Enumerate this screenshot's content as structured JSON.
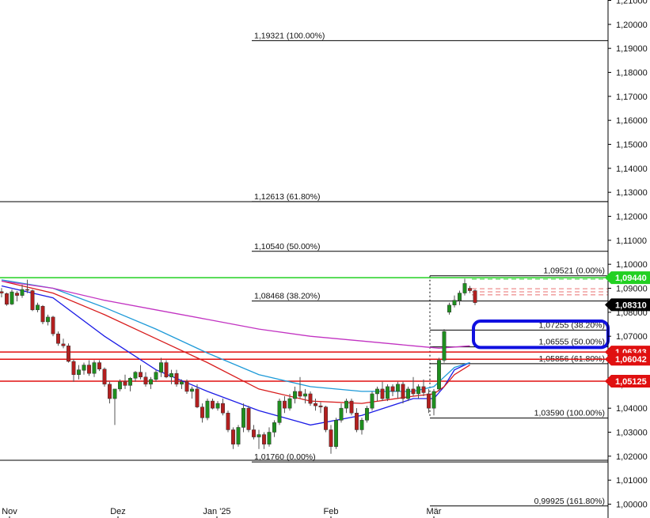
{
  "chart_data": {
    "type": "candlestick",
    "instrument": "EUR/USD",
    "y_axis": {
      "range": [
        1.0,
        1.21
      ],
      "ticks": [
        "1,00000",
        "1,01000",
        "1,02000",
        "1,03000",
        "1,04000",
        "1,05000",
        "1,06000",
        "1,07000",
        "1,08000",
        "1,09000",
        "1,10000",
        "1,11000",
        "1,12000",
        "1,13000",
        "1,14000",
        "1,15000",
        "1,16000",
        "1,17000",
        "1,18000",
        "1,19000",
        "1,20000",
        "1,21000"
      ],
      "position": "right"
    },
    "x_axis": {
      "labels": [
        {
          "text": "Nov",
          "date": "2024-11-01"
        },
        {
          "text": "Dez",
          "date": "2024-12-01"
        },
        {
          "text": "Jan '25",
          "date": "2025-01-01"
        },
        {
          "text": "Feb",
          "date": "2025-02-01"
        },
        {
          "text": "Mär",
          "date": "2025-03-01"
        }
      ]
    },
    "candles": [
      {
        "o": 1.0886,
        "h": 1.0901,
        "l": 1.0862,
        "c": 1.088
      },
      {
        "o": 1.0878,
        "h": 1.0882,
        "l": 1.0827,
        "c": 1.0833
      },
      {
        "o": 1.0834,
        "h": 1.0895,
        "l": 1.083,
        "c": 1.0885
      },
      {
        "o": 1.088,
        "h": 1.0888,
        "l": 1.0845,
        "c": 1.087
      },
      {
        "o": 1.087,
        "h": 1.0915,
        "l": 1.086,
        "c": 1.0895
      },
      {
        "o": 1.0895,
        "h": 1.0936,
        "l": 1.088,
        "c": 1.0893
      },
      {
        "o": 1.089,
        "h": 1.0895,
        "l": 1.0805,
        "c": 1.081
      },
      {
        "o": 1.081,
        "h": 1.084,
        "l": 1.08,
        "c": 1.083
      },
      {
        "o": 1.0825,
        "h": 1.083,
        "l": 1.075,
        "c": 1.076
      },
      {
        "o": 1.076,
        "h": 1.079,
        "l": 1.0745,
        "c": 1.078
      },
      {
        "o": 1.078,
        "h": 1.0785,
        "l": 1.07,
        "c": 1.071
      },
      {
        "o": 1.071,
        "h": 1.072,
        "l": 1.066,
        "c": 1.067
      },
      {
        "o": 1.0668,
        "h": 1.069,
        "l": 1.065,
        "c": 1.066
      },
      {
        "o": 1.066,
        "h": 1.067,
        "l": 1.059,
        "c": 1.0595
      },
      {
        "o": 1.0595,
        "h": 1.0605,
        "l": 1.051,
        "c": 1.054
      },
      {
        "o": 1.054,
        "h": 1.058,
        "l": 1.052,
        "c": 1.056
      },
      {
        "o": 1.0558,
        "h": 1.059,
        "l": 1.054,
        "c": 1.058
      },
      {
        "o": 1.058,
        "h": 1.06,
        "l": 1.0535,
        "c": 1.0545
      },
      {
        "o": 1.0545,
        "h": 1.06,
        "l": 1.053,
        "c": 1.059
      },
      {
        "o": 1.059,
        "h": 1.06,
        "l": 1.0555,
        "c": 1.0563
      },
      {
        "o": 1.0563,
        "h": 1.057,
        "l": 1.049,
        "c": 1.05
      },
      {
        "o": 1.05,
        "h": 1.051,
        "l": 1.042,
        "c": 1.044
      },
      {
        "o": 1.044,
        "h": 1.046,
        "l": 1.033,
        "c": 1.048
      },
      {
        "o": 1.048,
        "h": 1.052,
        "l": 1.047,
        "c": 1.051
      },
      {
        "o": 1.051,
        "h": 1.054,
        "l": 1.048,
        "c": 1.0495
      },
      {
        "o": 1.0495,
        "h": 1.053,
        "l": 1.047,
        "c": 1.0525
      },
      {
        "o": 1.0525,
        "h": 1.0555,
        "l": 1.051,
        "c": 1.055
      },
      {
        "o": 1.055,
        "h": 1.058,
        "l": 1.052,
        "c": 1.053
      },
      {
        "o": 1.053,
        "h": 1.055,
        "l": 1.049,
        "c": 1.05
      },
      {
        "o": 1.05,
        "h": 1.053,
        "l": 1.048,
        "c": 1.052
      },
      {
        "o": 1.052,
        "h": 1.056,
        "l": 1.051,
        "c": 1.055
      },
      {
        "o": 1.055,
        "h": 1.061,
        "l": 1.053,
        "c": 1.059
      },
      {
        "o": 1.059,
        "h": 1.06,
        "l": 1.0525,
        "c": 1.053
      },
      {
        "o": 1.053,
        "h": 1.056,
        "l": 1.05,
        "c": 1.0545
      },
      {
        "o": 1.0545,
        "h": 1.056,
        "l": 1.049,
        "c": 1.05
      },
      {
        "o": 1.05,
        "h": 1.052,
        "l": 1.048,
        "c": 1.051
      },
      {
        "o": 1.051,
        "h": 1.052,
        "l": 1.046,
        "c": 1.047
      },
      {
        "o": 1.047,
        "h": 1.049,
        "l": 1.044,
        "c": 1.048
      },
      {
        "o": 1.048,
        "h": 1.05,
        "l": 1.04,
        "c": 1.0405
      },
      {
        "o": 1.0405,
        "h": 1.042,
        "l": 1.034,
        "c": 1.036
      },
      {
        "o": 1.036,
        "h": 1.044,
        "l": 1.035,
        "c": 1.043
      },
      {
        "o": 1.043,
        "h": 1.044,
        "l": 1.0395,
        "c": 1.04
      },
      {
        "o": 1.04,
        "h": 1.043,
        "l": 1.039,
        "c": 1.042
      },
      {
        "o": 1.042,
        "h": 1.044,
        "l": 1.037,
        "c": 1.038
      },
      {
        "o": 1.038,
        "h": 1.039,
        "l": 1.03,
        "c": 1.031
      },
      {
        "o": 1.031,
        "h": 1.032,
        "l": 1.023,
        "c": 1.025
      },
      {
        "o": 1.025,
        "h": 1.033,
        "l": 1.024,
        "c": 1.032
      },
      {
        "o": 1.032,
        "h": 1.042,
        "l": 1.03,
        "c": 1.04
      },
      {
        "o": 1.04,
        "h": 1.041,
        "l": 1.03,
        "c": 1.031
      },
      {
        "o": 1.031,
        "h": 1.033,
        "l": 1.027,
        "c": 1.028
      },
      {
        "o": 1.028,
        "h": 1.031,
        "l": 1.023,
        "c": 1.029
      },
      {
        "o": 1.029,
        "h": 1.03,
        "l": 1.023,
        "c": 1.025
      },
      {
        "o": 1.025,
        "h": 1.032,
        "l": 1.024,
        "c": 1.03
      },
      {
        "o": 1.03,
        "h": 1.035,
        "l": 1.028,
        "c": 1.034
      },
      {
        "o": 1.034,
        "h": 1.044,
        "l": 1.033,
        "c": 1.043
      },
      {
        "o": 1.043,
        "h": 1.045,
        "l": 1.038,
        "c": 1.04
      },
      {
        "o": 1.04,
        "h": 1.046,
        "l": 1.039,
        "c": 1.044
      },
      {
        "o": 1.044,
        "h": 1.049,
        "l": 1.042,
        "c": 1.047
      },
      {
        "o": 1.047,
        "h": 1.053,
        "l": 1.044,
        "c": 1.045
      },
      {
        "o": 1.045,
        "h": 1.048,
        "l": 1.042,
        "c": 1.046
      },
      {
        "o": 1.046,
        "h": 1.047,
        "l": 1.041,
        "c": 1.042
      },
      {
        "o": 1.042,
        "h": 1.044,
        "l": 1.039,
        "c": 1.041
      },
      {
        "o": 1.041,
        "h": 1.0425,
        "l": 1.038,
        "c": 1.0405
      },
      {
        "o": 1.0405,
        "h": 1.041,
        "l": 1.03,
        "c": 1.031
      },
      {
        "o": 1.031,
        "h": 1.033,
        "l": 1.021,
        "c": 1.024
      },
      {
        "o": 1.024,
        "h": 1.036,
        "l": 1.023,
        "c": 1.035
      },
      {
        "o": 1.035,
        "h": 1.042,
        "l": 1.034,
        "c": 1.04
      },
      {
        "o": 1.04,
        "h": 1.044,
        "l": 1.038,
        "c": 1.043
      },
      {
        "o": 1.043,
        "h": 1.044,
        "l": 1.037,
        "c": 1.038
      },
      {
        "o": 1.038,
        "h": 1.04,
        "l": 1.03,
        "c": 1.031
      },
      {
        "o": 1.031,
        "h": 1.036,
        "l": 1.029,
        "c": 1.035
      },
      {
        "o": 1.035,
        "h": 1.041,
        "l": 1.034,
        "c": 1.04
      },
      {
        "o": 1.04,
        "h": 1.047,
        "l": 1.039,
        "c": 1.046
      },
      {
        "o": 1.046,
        "h": 1.049,
        "l": 1.043,
        "c": 1.048
      },
      {
        "o": 1.048,
        "h": 1.051,
        "l": 1.043,
        "c": 1.044
      },
      {
        "o": 1.044,
        "h": 1.05,
        "l": 1.043,
        "c": 1.049
      },
      {
        "o": 1.049,
        "h": 1.05,
        "l": 1.045,
        "c": 1.047
      },
      {
        "o": 1.047,
        "h": 1.051,
        "l": 1.044,
        "c": 1.05
      },
      {
        "o": 1.05,
        "h": 1.051,
        "l": 1.042,
        "c": 1.044
      },
      {
        "o": 1.044,
        "h": 1.049,
        "l": 1.043,
        "c": 1.048
      },
      {
        "o": 1.048,
        "h": 1.053,
        "l": 1.045,
        "c": 1.046
      },
      {
        "o": 1.046,
        "h": 1.05,
        "l": 1.044,
        "c": 1.049
      },
      {
        "o": 1.049,
        "h": 1.052,
        "l": 1.045,
        "c": 1.0465
      },
      {
        "o": 1.046,
        "h": 1.048,
        "l": 1.038,
        "c": 1.04
      },
      {
        "o": 1.04,
        "h": 1.048,
        "l": 1.037,
        "c": 1.047
      },
      {
        "o": 1.048,
        "h": 1.061,
        "l": 1.047,
        "c": 1.06
      },
      {
        "o": 1.06,
        "h": 1.073,
        "l": 1.059,
        "c": 1.072
      },
      {
        "o": 1.08,
        "h": 1.084,
        "l": 1.079,
        "c": 1.083
      },
      {
        "o": 1.083,
        "h": 1.087,
        "l": 1.082,
        "c": 1.085
      },
      {
        "o": 1.085,
        "h": 1.089,
        "l": 1.083,
        "c": 1.088
      },
      {
        "o": 1.088,
        "h": 1.094,
        "l": 1.087,
        "c": 1.092
      },
      {
        "o": 1.09,
        "h": 1.091,
        "l": 1.088,
        "c": 1.089
      },
      {
        "o": 1.089,
        "h": 1.0895,
        "l": 1.083,
        "c": 1.084
      }
    ],
    "moving_averages": [
      {
        "color": "#1c1ce6",
        "x": [
          0,
          10,
          20,
          30,
          40,
          50,
          60,
          70,
          80,
          84,
          86,
          88,
          91
        ],
        "values": [
          1.091,
          1.086,
          1.07,
          1.056,
          1.047,
          1.039,
          1.033,
          1.037,
          1.044,
          1.044,
          1.049,
          1.056,
          1.059
        ]
      },
      {
        "color": "#d81c1c",
        "x": [
          0,
          10,
          20,
          30,
          40,
          50,
          60,
          70,
          80,
          84,
          86,
          88,
          91
        ],
        "values": [
          1.093,
          1.088,
          1.079,
          1.069,
          1.059,
          1.048,
          1.043,
          1.042,
          1.045,
          1.046,
          1.049,
          1.054,
          1.058
        ]
      },
      {
        "color": "#1e9ad8",
        "x": [
          0,
          10,
          20,
          30,
          40,
          50,
          60,
          70,
          80,
          84,
          86,
          88,
          91
        ],
        "values": [
          1.0935,
          1.09,
          1.082,
          1.073,
          1.063,
          1.054,
          1.049,
          1.047,
          1.047,
          1.049,
          1.053,
          1.057,
          1.059
        ]
      },
      {
        "color": "#c233c2",
        "x": [
          0,
          10,
          20,
          30,
          40,
          50,
          60,
          70,
          80,
          85,
          91
        ],
        "values": [
          1.093,
          1.09,
          1.085,
          1.081,
          1.077,
          1.073,
          1.07,
          1.068,
          1.066,
          1.065,
          1.066
        ]
      }
    ],
    "horizontal_lines": [
      {
        "price": 1.0944,
        "color": "#22d022",
        "label": "1,09440",
        "badge_color": "#22d022"
      },
      {
        "price": 1.06343,
        "color": "#e01010",
        "label": "1,06343",
        "badge_color": "#e01010"
      },
      {
        "price": 1.06042,
        "color": "#e01010",
        "label": "1,06042",
        "badge_color": "#e01010"
      },
      {
        "price": 1.05125,
        "color": "#e01010",
        "label": "1,05125",
        "badge_color": "#e01010"
      },
      {
        "price": 1.1261,
        "color": "#000000",
        "label": ""
      },
      {
        "price": 1.0183,
        "color": "#000000",
        "label": ""
      }
    ],
    "fib_upper": [
      {
        "price": 1.19321,
        "label": "1,19321 (100.00%)"
      },
      {
        "price": 1.12613,
        "label": "1,12613 (61.80%)"
      },
      {
        "price": 1.1054,
        "label": "1,10540 (50.00%)"
      },
      {
        "price": 1.08468,
        "label": "1,08468 (38.20%)"
      },
      {
        "price": 1.0176,
        "label": "1,01760 (0.00%)"
      }
    ],
    "fib_lower": [
      {
        "price": 1.09521,
        "label": "1,09521 (0.00%)"
      },
      {
        "price": 1.07255,
        "label": "1,07255 (38.20%)"
      },
      {
        "price": 1.06555,
        "label": "1,06555 (50.00%)"
      },
      {
        "price": 1.05856,
        "label": "1,05856 (61.80%)"
      },
      {
        "price": 1.0359,
        "label": "1,03590 (100.00%)"
      },
      {
        "price": 0.99925,
        "label": "0,99925 (161.80%)"
      }
    ],
    "current_price": {
      "label": "1,08310",
      "value": 1.0831,
      "badge_color": "#000000"
    },
    "highlight_box": {
      "price_top": 1.0763,
      "price_bottom": 1.0653,
      "color": "#1010e0"
    }
  }
}
